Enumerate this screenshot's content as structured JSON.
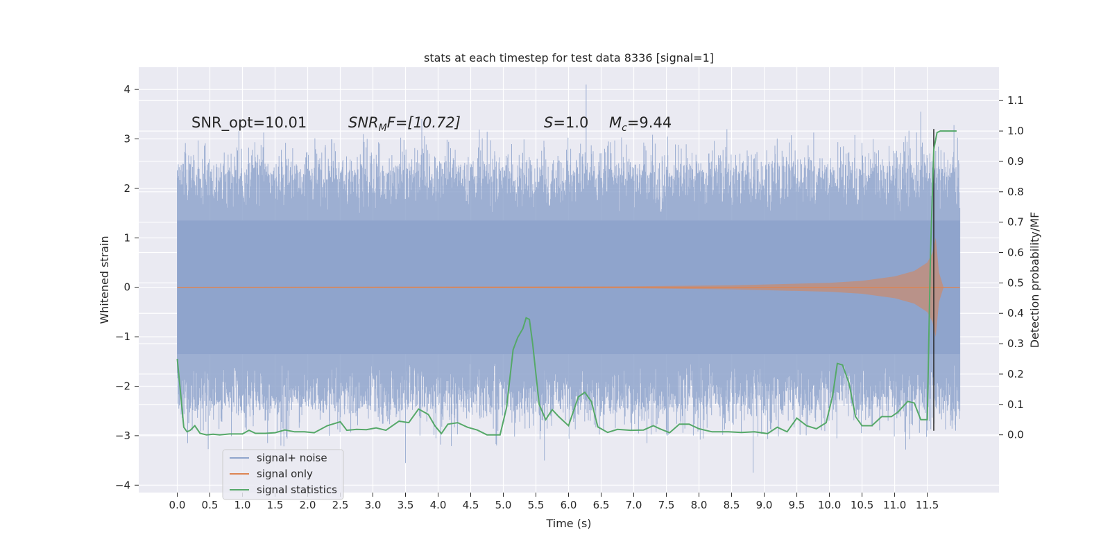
{
  "chart_data": {
    "type": "line",
    "title": "stats at each timestep for test data 8336 [signal=1]",
    "xlabel": "Time (s)",
    "ylabel": "Whitened strain",
    "y2label": "Detection probability/MF",
    "xlim": [
      -0.59,
      12.6
    ],
    "ylim": [
      -4.15,
      4.45
    ],
    "y2lim": [
      -0.19,
      1.21
    ],
    "x_ticks": [
      "0.0",
      "0.5",
      "1.0",
      "1.5",
      "2.0",
      "2.5",
      "3.0",
      "3.5",
      "4.0",
      "4.5",
      "5.0",
      "5.5",
      "6.0",
      "6.5",
      "7.0",
      "7.5",
      "8.0",
      "8.5",
      "9.0",
      "9.5",
      "10.0",
      "10.5",
      "11.0",
      "11.5"
    ],
    "y_ticks": [
      "4",
      "3",
      "2",
      "1",
      "0",
      "−1",
      "−2",
      "−3",
      "−4"
    ],
    "y2_ticks": [
      "1.1",
      "1.0",
      "0.9",
      "0.8",
      "0.7",
      "0.6",
      "0.5",
      "0.4",
      "0.3",
      "0.2",
      "0.1",
      "0.0"
    ],
    "grid": true,
    "legend_position": "lower-left",
    "annotations": {
      "snr_opt": "SNR_opt=10.01",
      "snr_mf_main": "SNR",
      "snr_mf_sub": "M",
      "snr_mf_rest": "F=[10.72]",
      "s_main": "S",
      "s_rest": "=1.0",
      "mc_main": "M",
      "mc_sub": "c",
      "mc_rest": "=9.44"
    },
    "series": [
      {
        "name": "signal+ noise",
        "color": "#8fa4cc",
        "x_range": [
          0.0,
          12.0
        ],
        "abs_extent_approx": 2.5,
        "peak_points": [
          {
            "x": 6.27,
            "y": 4.1
          },
          {
            "x": 3.75,
            "y": 3.4
          },
          {
            "x": 11.4,
            "y": 3.55
          },
          {
            "x": 3.5,
            "y": -3.55
          },
          {
            "x": 8.83,
            "y": -3.75
          },
          {
            "x": 5.63,
            "y": -3.5
          },
          {
            "x": 1.59,
            "y": -3.2
          },
          {
            "x": 0.16,
            "y": -3.15
          }
        ]
      },
      {
        "name": "signal only",
        "color": "#dd8452",
        "x_range": [
          0.0,
          12.0
        ],
        "envelope": [
          {
            "x": 0.0,
            "y": 0.01
          },
          {
            "x": 4.0,
            "y": 0.015
          },
          {
            "x": 7.0,
            "y": 0.02
          },
          {
            "x": 8.5,
            "y": 0.04
          },
          {
            "x": 10.0,
            "y": 0.09
          },
          {
            "x": 10.5,
            "y": 0.13
          },
          {
            "x": 11.0,
            "y": 0.22
          },
          {
            "x": 11.3,
            "y": 0.33
          },
          {
            "x": 11.5,
            "y": 0.5
          },
          {
            "x": 11.58,
            "y": 0.7
          },
          {
            "x": 11.63,
            "y": 1.0
          },
          {
            "x": 11.68,
            "y": 0.3
          },
          {
            "x": 11.75,
            "y": 0.0
          },
          {
            "x": 12.0,
            "y": 0.0
          }
        ]
      },
      {
        "name": "signal statistics",
        "color": "#55a868",
        "axis": "right",
        "x": [
          0.0,
          0.05,
          0.1,
          0.15,
          0.2,
          0.27,
          0.35,
          0.45,
          0.55,
          0.65,
          0.8,
          1.0,
          1.1,
          1.2,
          1.35,
          1.5,
          1.65,
          1.8,
          1.95,
          2.1,
          2.3,
          2.5,
          2.6,
          2.75,
          2.9,
          3.05,
          3.2,
          3.4,
          3.55,
          3.7,
          3.85,
          3.95,
          4.05,
          4.15,
          4.3,
          4.45,
          4.6,
          4.75,
          4.95,
          5.05,
          5.15,
          5.22,
          5.3,
          5.35,
          5.4,
          5.45,
          5.55,
          5.65,
          5.75,
          5.85,
          6.0,
          6.15,
          6.25,
          6.35,
          6.45,
          6.6,
          6.75,
          6.95,
          7.15,
          7.3,
          7.4,
          7.55,
          7.7,
          7.85,
          8.0,
          8.2,
          8.45,
          8.65,
          8.85,
          9.05,
          9.2,
          9.35,
          9.5,
          9.65,
          9.8,
          9.95,
          10.05,
          10.12,
          10.2,
          10.3,
          10.4,
          10.5,
          10.65,
          10.8,
          10.95,
          11.05,
          11.2,
          11.3,
          11.4,
          11.5,
          11.55,
          11.6,
          11.65,
          11.7,
          11.8,
          11.95
        ],
        "y": [
          0.25,
          0.14,
          0.025,
          0.01,
          0.015,
          0.03,
          0.005,
          0.0,
          0.002,
          0.0,
          0.003,
          0.003,
          0.015,
          0.005,
          0.005,
          0.007,
          0.016,
          0.01,
          0.01,
          0.007,
          0.03,
          0.043,
          0.015,
          0.018,
          0.017,
          0.023,
          0.015,
          0.045,
          0.04,
          0.085,
          0.067,
          0.03,
          0.004,
          0.035,
          0.04,
          0.025,
          0.016,
          0.0,
          0.0,
          0.09,
          0.28,
          0.32,
          0.35,
          0.385,
          0.38,
          0.3,
          0.1,
          0.05,
          0.083,
          0.06,
          0.03,
          0.125,
          0.14,
          0.11,
          0.026,
          0.008,
          0.018,
          0.015,
          0.016,
          0.03,
          0.02,
          0.007,
          0.035,
          0.035,
          0.02,
          0.01,
          0.01,
          0.008,
          0.01,
          0.004,
          0.025,
          0.01,
          0.055,
          0.03,
          0.02,
          0.04,
          0.13,
          0.235,
          0.23,
          0.17,
          0.06,
          0.03,
          0.03,
          0.06,
          0.06,
          0.075,
          0.11,
          0.105,
          0.05,
          0.05,
          0.6,
          0.94,
          0.995,
          1.0,
          1.0,
          1.0
        ]
      }
    ],
    "vertical_marker": {
      "x": 11.6,
      "y_top": 3.2,
      "y_bottom": -2.9,
      "color": "#262626"
    }
  }
}
